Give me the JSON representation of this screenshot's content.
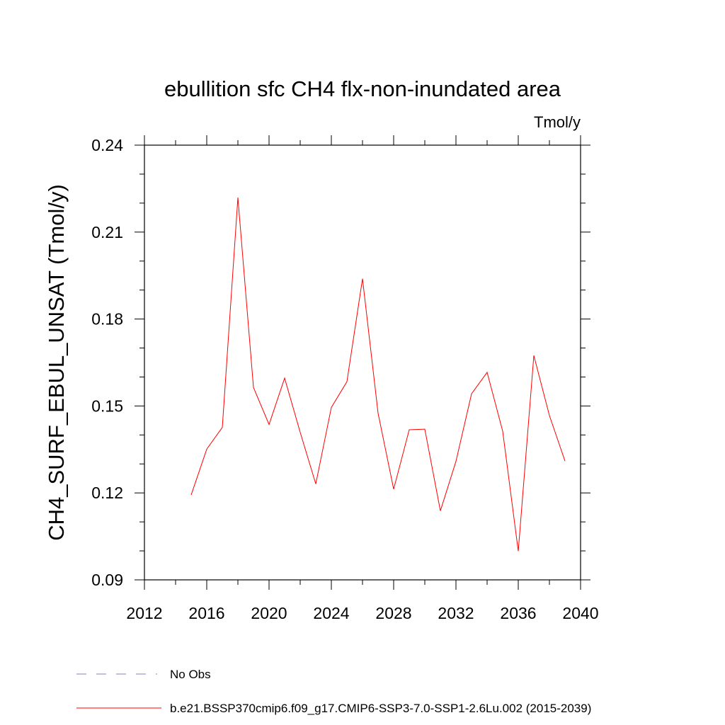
{
  "chart_data": {
    "type": "line",
    "title": "ebullition sfc CH4 flx-non-inundated area",
    "units_label": "Tmol/y",
    "ylabel": "CH4_SURF_EBUL_UNSAT  (Tmol/y)",
    "xlabel": "",
    "xlim": [
      2012,
      2040
    ],
    "ylim": [
      0.09,
      0.24
    ],
    "x_ticks": [
      2012,
      2016,
      2020,
      2024,
      2028,
      2032,
      2036,
      2040
    ],
    "x_tick_labels": [
      "2012",
      "2016",
      "2020",
      "2024",
      "2028",
      "2032",
      "2036",
      "2040"
    ],
    "y_ticks": [
      0.09,
      0.12,
      0.15,
      0.18,
      0.21,
      0.24
    ],
    "y_tick_labels": [
      "0.09",
      "0.12",
      "0.15",
      "0.18",
      "0.21",
      "0.24"
    ],
    "grid": false,
    "legend_position": "bottom",
    "series": [
      {
        "name": "b.e21.BSSP370cmip6.f09_g17.CMIP6-SSP3-7.0-SSP1-2.6Lu.002 (2015-2039)",
        "color": "#ff0000",
        "style": "solid",
        "x": [
          2015,
          2016,
          2017,
          2018,
          2019,
          2020,
          2021,
          2022,
          2023,
          2024,
          2025,
          2026,
          2027,
          2028,
          2029,
          2030,
          2031,
          2032,
          2033,
          2034,
          2035,
          2036,
          2037,
          2038,
          2039
        ],
        "y": [
          0.1193,
          0.1351,
          0.1426,
          0.2219,
          0.1564,
          0.1436,
          0.1596,
          0.1409,
          0.1231,
          0.1495,
          0.1584,
          0.1939,
          0.1475,
          0.1213,
          0.1418,
          0.142,
          0.1138,
          0.1309,
          0.1542,
          0.1616,
          0.1413,
          0.0999,
          0.1674,
          0.1467,
          0.131
        ]
      }
    ],
    "legend": [
      {
        "label": "No Obs",
        "color": "#8080c0",
        "style": "dashed"
      },
      {
        "label": "b.e21.BSSP370cmip6.f09_g17.CMIP6-SSP3-7.0-SSP1-2.6Lu.002 (2015-2039)",
        "color": "#ff0000",
        "style": "solid"
      }
    ]
  }
}
